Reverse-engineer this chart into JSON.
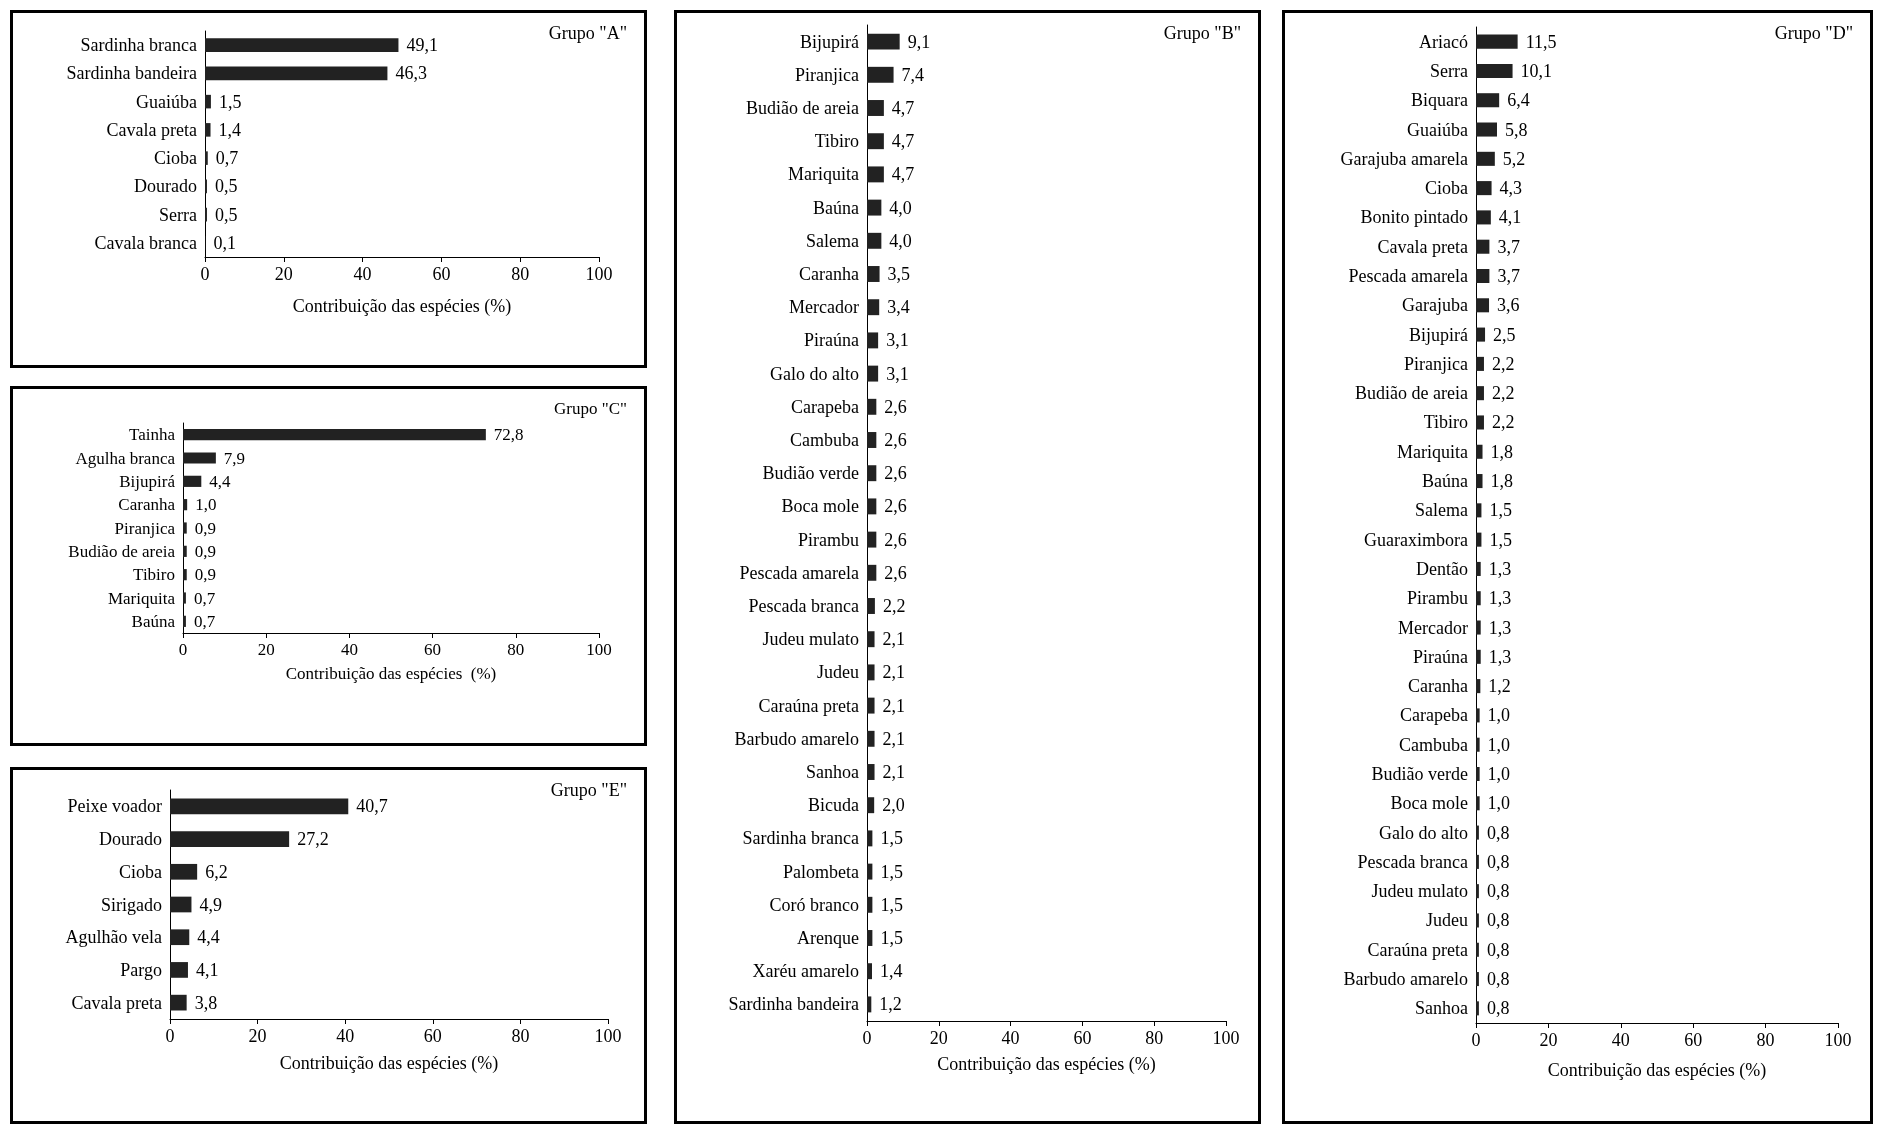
{
  "chart_data": [
    {
      "type": "bar",
      "orientation": "horizontal",
      "title": "Grupo \"A\"",
      "xlabel": "Contribuição das espécies (%)",
      "color": "#222222",
      "xlim": [
        0,
        100
      ],
      "xticks": [
        0,
        20,
        40,
        60,
        80,
        100
      ],
      "grid": false,
      "categories": [
        "Sardinha branca",
        "Sardinha bandeira",
        "Guaiúba",
        "Cavala preta",
        "Cioba",
        "Dourado",
        "Serra",
        "Cavala branca"
      ],
      "values": [
        49.1,
        46.3,
        1.5,
        1.4,
        0.7,
        0.5,
        0.5,
        0.1
      ],
      "value_labels": [
        "49,1",
        "46,3",
        "1,5",
        "1,4",
        "0,7",
        "0,5",
        "0,5",
        "0,1"
      ]
    },
    {
      "type": "bar",
      "orientation": "horizontal",
      "title": "Grupo \"C\"",
      "xlabel": "Contribuição das espécies  (%)",
      "color": "#222222",
      "xlim": [
        0,
        100
      ],
      "xticks": [
        0,
        20,
        40,
        60,
        80,
        100
      ],
      "grid": false,
      "categories": [
        "Tainha",
        "Agulha branca",
        "Bijupirá",
        "Caranha",
        "Piranjica",
        "Budião de areia",
        "Tibiro",
        "Mariquita",
        "Baúna"
      ],
      "values": [
        72.8,
        7.9,
        4.4,
        1.0,
        0.9,
        0.9,
        0.9,
        0.7,
        0.7
      ],
      "value_labels": [
        "72,8",
        "7,9",
        "4,4",
        "1,0",
        "0,9",
        "0,9",
        "0,9",
        "0,7",
        "0,7"
      ]
    },
    {
      "type": "bar",
      "orientation": "horizontal",
      "title": "Grupo \"E\"",
      "xlabel": "Contribuição das espécies (%)",
      "color": "#222222",
      "xlim": [
        0,
        100
      ],
      "xticks": [
        0,
        20,
        40,
        60,
        80,
        100
      ],
      "grid": false,
      "categories": [
        "Peixe voador",
        "Dourado",
        "Cioba",
        "Sirigado",
        "Agulhão vela",
        "Pargo",
        "Cavala preta"
      ],
      "values": [
        40.7,
        27.2,
        6.2,
        4.9,
        4.4,
        4.1,
        3.8
      ],
      "value_labels": [
        "40,7",
        "27,2",
        "6,2",
        "4,9",
        "4,4",
        "4,1",
        "3,8"
      ]
    },
    {
      "type": "bar",
      "orientation": "horizontal",
      "title": "Grupo \"B\"",
      "xlabel": "Contribuição das espécies (%)",
      "color": "#222222",
      "xlim": [
        0,
        100
      ],
      "xticks": [
        0,
        20,
        40,
        60,
        80,
        100
      ],
      "grid": false,
      "categories": [
        "Bijupirá",
        "Piranjica",
        "Budião de areia",
        "Tibiro",
        "Mariquita",
        "Baúna",
        "Salema",
        "Caranha",
        "Mercador",
        "Piraúna",
        "Galo do alto",
        "Carapeba",
        "Cambuba",
        "Budião verde",
        "Boca mole",
        "Pirambu",
        "Pescada amarela",
        "Pescada branca",
        "Judeu mulato",
        "Judeu",
        "Caraúna preta",
        "Barbudo amarelo",
        "Sanhoa",
        "Bicuda",
        "Sardinha branca",
        "Palombeta",
        "Coró branco",
        "Arenque",
        "Xaréu amarelo",
        "Sardinha bandeira"
      ],
      "values": [
        9.1,
        7.4,
        4.7,
        4.7,
        4.7,
        4.0,
        4.0,
        3.5,
        3.4,
        3.1,
        3.1,
        2.6,
        2.6,
        2.6,
        2.6,
        2.6,
        2.6,
        2.2,
        2.1,
        2.1,
        2.1,
        2.1,
        2.1,
        2.0,
        1.5,
        1.5,
        1.5,
        1.5,
        1.4,
        1.2
      ],
      "value_labels": [
        "9,1",
        "7,4",
        "4,7",
        "4,7",
        "4,7",
        "4,0",
        "4,0",
        "3,5",
        "3,4",
        "3,1",
        "3,1",
        "2,6",
        "2,6",
        "2,6",
        "2,6",
        "2,6",
        "2,6",
        "2,2",
        "2,1",
        "2,1",
        "2,1",
        "2,1",
        "2,1",
        "2,0",
        "1,5",
        "1,5",
        "1,5",
        "1,5",
        "1,4",
        "1,2"
      ]
    },
    {
      "type": "bar",
      "orientation": "horizontal",
      "title": "Grupo \"D\"",
      "xlabel": "Contribuição das espécies (%)",
      "color": "#222222",
      "xlim": [
        0,
        100
      ],
      "xticks": [
        0,
        20,
        40,
        60,
        80,
        100
      ],
      "grid": false,
      "categories": [
        "Ariacó",
        "Serra",
        "Biquara",
        "Guaiúba",
        "Garajuba amarela",
        "Cioba",
        "Bonito pintado",
        "Cavala preta",
        "Pescada amarela",
        "Garajuba",
        "Bijupirá",
        "Piranjica",
        "Budião de areia",
        "Tibiro",
        "Mariquita",
        "Baúna",
        "Salema",
        "Guaraximbora",
        "Dentão",
        "Pirambu",
        "Mercador",
        "Piraúna",
        "Caranha",
        "Carapeba",
        "Cambuba",
        "Budião verde",
        "Boca mole",
        "Galo do alto",
        "Pescada branca",
        "Judeu mulato",
        "Judeu",
        "Caraúna preta",
        "Barbudo amarelo",
        "Sanhoa"
      ],
      "values": [
        11.5,
        10.1,
        6.4,
        5.8,
        5.2,
        4.3,
        4.1,
        3.7,
        3.7,
        3.6,
        2.5,
        2.2,
        2.2,
        2.2,
        1.8,
        1.8,
        1.5,
        1.5,
        1.3,
        1.3,
        1.3,
        1.3,
        1.2,
        1.0,
        1.0,
        1.0,
        1.0,
        0.8,
        0.8,
        0.8,
        0.8,
        0.8,
        0.8,
        0.8
      ],
      "value_labels": [
        "11,5",
        "10,1",
        "6,4",
        "5,8",
        "5,2",
        "4,3",
        "4,1",
        "3,7",
        "3,7",
        "3,6",
        "2,5",
        "2,2",
        "2,2",
        "2,2",
        "1,8",
        "1,8",
        "1,5",
        "1,5",
        "1,3",
        "1,3",
        "1,3",
        "1,3",
        "1,2",
        "1,0",
        "1,0",
        "1,0",
        "1,0",
        "0,8",
        "0,8",
        "0,8",
        "0,8",
        "0,8",
        "0,8",
        "0,8"
      ]
    }
  ]
}
